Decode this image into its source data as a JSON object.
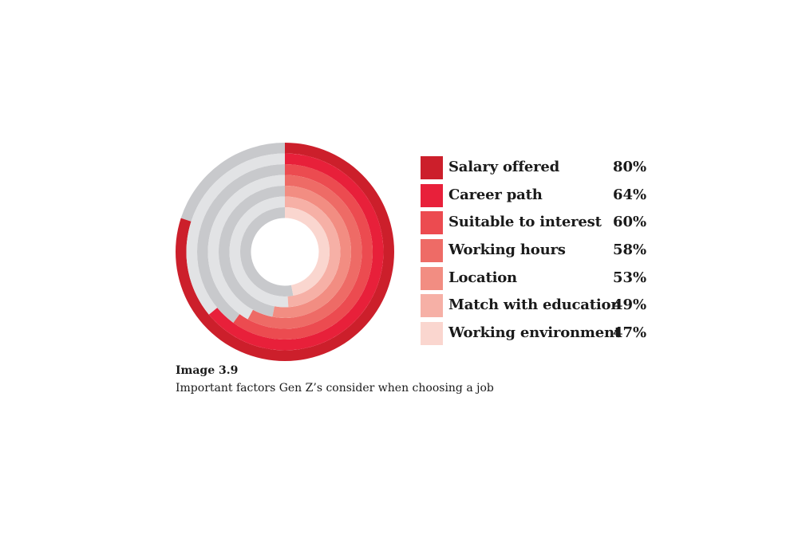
{
  "chart_data": {
    "type": "radial-bar",
    "categories": [
      "Salary offered",
      "Career path",
      "Suitable to interest",
      "Working hours",
      "Location",
      "Match with education",
      "Working environment"
    ],
    "values": [
      80,
      64,
      60,
      58,
      53,
      49,
      47
    ],
    "value_labels": [
      "80%",
      "64%",
      "60%",
      "58%",
      "53%",
      "49%",
      "47%"
    ],
    "colors": [
      "#cc1f2b",
      "#e8203a",
      "#ec4b50",
      "#ee6b66",
      "#f28d82",
      "#f6b0a6",
      "#fad6cf"
    ],
    "track_colors": [
      "#c8c9cc",
      "#e2e3e5"
    ],
    "max": 100,
    "legend_position": "right"
  },
  "caption": {
    "label": "Image 3.9",
    "text": "Important factors Gen Z’s consider when choosing a job"
  }
}
